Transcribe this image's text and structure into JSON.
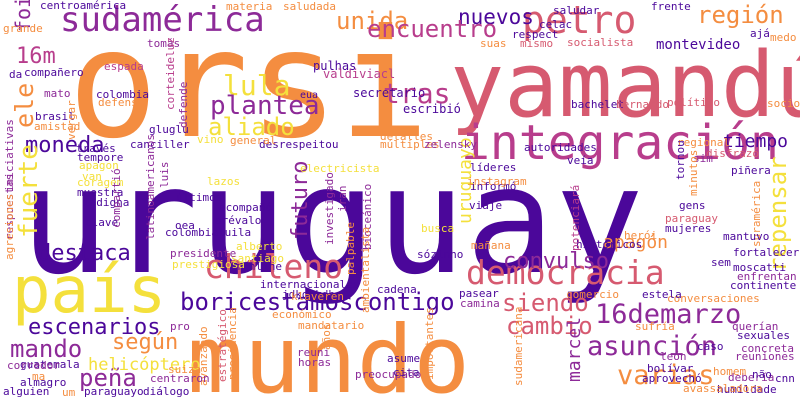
{
  "palette": {
    "indigo": "#4b079a",
    "purple": "#8d2a98",
    "magenta": "#b83d8c",
    "pink": "#d65a70",
    "orange": "#f48d40",
    "yellow": "#f4e03c",
    "background": "#ffffff"
  },
  "words": [
    {
      "text": "uruguay",
      "color": "indigo"
    },
    {
      "text": "orsi",
      "color": "orange"
    },
    {
      "text": "mundo",
      "color": "orange"
    },
    {
      "text": "yamandú",
      "color": "pink"
    },
    {
      "text": "país",
      "color": "yellow"
    },
    {
      "text": "integración",
      "color": "magenta"
    },
    {
      "text": "sudamérica",
      "color": "purple"
    },
    {
      "text": "petro",
      "color": "pink"
    },
    {
      "text": "democracia",
      "color": "pink"
    },
    {
      "text": "chileno",
      "color": "pink"
    },
    {
      "text": "boricestamoscontigo",
      "color": "indigo"
    },
    {
      "text": "16demarzo",
      "color": "purple"
    },
    {
      "text": "asunción",
      "color": "purple"
    },
    {
      "text": "cambio",
      "color": "pink"
    },
    {
      "text": "varias",
      "color": "orange"
    },
    {
      "text": "región",
      "color": "orange"
    },
    {
      "text": "unida",
      "color": "orange"
    },
    {
      "text": "nuevos",
      "color": "indigo"
    },
    {
      "text": "encuentro",
      "color": "magenta"
    },
    {
      "text": "16m",
      "color": "magenta"
    },
    {
      "text": "foi",
      "color": "purple"
    },
    {
      "text": "lula",
      "color": "yellow"
    },
    {
      "text": "tras",
      "color": "magenta"
    },
    {
      "text": "plantea",
      "color": "purple"
    },
    {
      "text": "aliado",
      "color": "yellow"
    },
    {
      "text": "moneda",
      "color": "indigo"
    },
    {
      "text": "fuerte",
      "color": "yellow"
    },
    {
      "text": "ele",
      "color": "orange"
    },
    {
      "text": "destaca",
      "color": "indigo"
    },
    {
      "text": "futuro",
      "color": "purple"
    },
    {
      "text": "uruguayo",
      "color": "yellow"
    },
    {
      "text": "convulso",
      "color": "purple"
    },
    {
      "text": "siendo",
      "color": "pink"
    },
    {
      "text": "repensar",
      "color": "yellow"
    },
    {
      "text": "escenarios",
      "color": "indigo"
    },
    {
      "text": "según",
      "color": "orange"
    },
    {
      "text": "mando",
      "color": "purple"
    },
    {
      "text": "peña",
      "color": "purple"
    },
    {
      "text": "helicóptero",
      "color": "yellow"
    },
    {
      "text": "apagón",
      "color": "orange"
    },
    {
      "text": "tiempo",
      "color": "indigo"
    },
    {
      "text": "marcel",
      "color": "purple"
    },
    {
      "text": "montevideo",
      "color": "indigo"
    },
    {
      "text": "centroamérica",
      "color": "indigo"
    },
    {
      "text": "materia",
      "color": "orange"
    },
    {
      "text": "saludada",
      "color": "orange"
    },
    {
      "text": "pulhas",
      "color": "indigo"
    },
    {
      "text": "valdiviacl",
      "color": "magenta"
    },
    {
      "text": "escribió",
      "color": "indigo"
    },
    {
      "text": "secretario",
      "color": "indigo"
    },
    {
      "text": "eua",
      "color": "indigo"
    },
    {
      "text": "tomás",
      "color": "purple"
    },
    {
      "text": "espada",
      "color": "magenta"
    },
    {
      "text": "colombia",
      "color": "indigo"
    },
    {
      "text": "corteideluz",
      "color": "magenta"
    },
    {
      "text": "detalles",
      "color": "orange"
    },
    {
      "text": "múltiples",
      "color": "orange"
    },
    {
      "text": "canciller",
      "color": "indigo"
    },
    {
      "text": "desrespeitou",
      "color": "indigo"
    },
    {
      "text": "zelensky",
      "color": "purple"
    },
    {
      "text": "autoridades",
      "color": "indigo"
    },
    {
      "text": "veía",
      "color": "indigo"
    },
    {
      "text": "líderes",
      "color": "indigo"
    },
    {
      "text": "informó",
      "color": "indigo"
    },
    {
      "text": "instagram",
      "color": "orange"
    },
    {
      "text": "viaje",
      "color": "indigo"
    },
    {
      "text": "mañana",
      "color": "orange"
    },
    {
      "text": "busca",
      "color": "yellow"
    },
    {
      "text": "herói",
      "color": "orange"
    },
    {
      "text": "históricos",
      "color": "indigo"
    },
    {
      "text": "potenciará",
      "color": "magenta"
    },
    {
      "text": "sózinho",
      "color": "indigo"
    },
    {
      "text": "cadena",
      "color": "indigo"
    },
    {
      "text": "pasear",
      "color": "indigo"
    },
    {
      "text": "camina",
      "color": "purple"
    },
    {
      "text": "internacionales",
      "color": "indigo"
    },
    {
      "text": "jdkdjkdb",
      "color": "indigo"
    },
    {
      "text": "bmonline",
      "color": "indigo"
    },
    {
      "text": "santiago",
      "color": "yellow"
    },
    {
      "text": "alberto",
      "color": "yellow"
    },
    {
      "text": "presidente",
      "color": "purple"
    },
    {
      "text": "prestigiosa",
      "color": "yellow"
    },
    {
      "text": "latinoamericanos",
      "color": "purple"
    },
    {
      "text": "colombialuila",
      "color": "indigo"
    },
    {
      "text": "arévalo",
      "color": "indigo"
    },
    {
      "text": "oea",
      "color": "indigo"
    },
    {
      "text": "últimos",
      "color": "indigo"
    },
    {
      "text": "acompañó",
      "color": "indigo"
    },
    {
      "text": "lazos",
      "color": "yellow"
    },
    {
      "text": "investigado",
      "color": "purple"
    },
    {
      "text": "iran",
      "color": "purple"
    },
    {
      "text": "palpable",
      "color": "orange"
    },
    {
      "text": "bioceánico",
      "color": "purple"
    },
    {
      "text": "klaveren",
      "color": "orange"
    },
    {
      "text": "económico",
      "color": "orange"
    },
    {
      "text": "mandatario",
      "color": "orange"
    },
    {
      "text": "reuni",
      "color": "purple"
    },
    {
      "text": "horas",
      "color": "purple"
    },
    {
      "text": "preocupado",
      "color": "purple"
    },
    {
      "text": "asume",
      "color": "indigo"
    },
    {
      "text": "cita",
      "color": "indigo"
    },
    {
      "text": "ambientalista",
      "color": "orange"
    },
    {
      "text": "importantes",
      "color": "orange"
    },
    {
      "text": "sudamericana",
      "color": "orange"
    },
    {
      "text": "avanzando",
      "color": "orange"
    },
    {
      "text": "estratégico",
      "color": "pink"
    },
    {
      "text": "presidencia",
      "color": "orange"
    },
    {
      "text": "años",
      "color": "orange"
    },
    {
      "text": "centraron",
      "color": "purple"
    },
    {
      "text": "diálogo",
      "color": "indigo"
    },
    {
      "text": "paraguayo",
      "color": "indigo"
    },
    {
      "text": "guatemala",
      "color": "indigo"
    },
    {
      "text": "almagro",
      "color": "indigo"
    },
    {
      "text": "alguien",
      "color": "indigo"
    },
    {
      "text": "corredor",
      "color": "purple"
    },
    {
      "text": "ma",
      "color": "orange"
    },
    {
      "text": "um",
      "color": "orange"
    },
    {
      "text": "gluglu",
      "color": "indigo"
    },
    {
      "text": "defende",
      "color": "purple"
    },
    {
      "text": "defensa",
      "color": "orange"
    },
    {
      "text": "amistad",
      "color": "orange"
    },
    {
      "text": "brasil",
      "color": "indigo"
    },
    {
      "text": "mato",
      "color": "purple"
    },
    {
      "text": "compañero",
      "color": "indigo"
    },
    {
      "text": "da",
      "color": "indigo"
    },
    {
      "text": "grande",
      "color": "orange"
    },
    {
      "text": "iniciativas",
      "color": "purple"
    },
    {
      "text": "respuestas",
      "color": "purple"
    },
    {
      "text": "agresiones",
      "color": "orange"
    },
    {
      "text": "vergar",
      "color": "orange"
    },
    {
      "text": "través",
      "color": "indigo"
    },
    {
      "text": "tempore",
      "color": "indigo"
    },
    {
      "text": "apagon",
      "color": "yellow"
    },
    {
      "text": "coragem",
      "color": "yellow"
    },
    {
      "text": "van",
      "color": "yellow"
    },
    {
      "text": "muestra",
      "color": "indigo"
    },
    {
      "text": "indigna",
      "color": "indigo"
    },
    {
      "text": "clave",
      "color": "indigo"
    },
    {
      "text": "luis",
      "color": "purple"
    },
    {
      "text": "compartió",
      "color": "purple"
    },
    {
      "text": "vino",
      "color": "yellow"
    },
    {
      "text": "general",
      "color": "orange"
    },
    {
      "text": "celac",
      "color": "indigo"
    },
    {
      "text": "saludar",
      "color": "indigo"
    },
    {
      "text": "frente",
      "color": "indigo"
    },
    {
      "text": "respect",
      "color": "indigo"
    },
    {
      "text": "mismo",
      "color": "pink"
    },
    {
      "text": "socialista",
      "color": "pink"
    },
    {
      "text": "suas",
      "color": "orange"
    },
    {
      "text": "ajá",
      "color": "indigo"
    },
    {
      "text": "medo",
      "color": "orange"
    },
    {
      "text": "bachelet",
      "color": "indigo"
    },
    {
      "text": "bernardo",
      "color": "pink"
    },
    {
      "text": "político",
      "color": "pink"
    },
    {
      "text": "socio",
      "color": "orange"
    },
    {
      "text": "regional",
      "color": "orange"
    },
    {
      "text": "disfrazó",
      "color": "pink"
    },
    {
      "text": "sim",
      "color": "purple"
    },
    {
      "text": "piñera",
      "color": "indigo"
    },
    {
      "text": "minutos",
      "color": "orange"
    },
    {
      "text": "suramérica",
      "color": "orange"
    },
    {
      "text": "gens",
      "color": "indigo"
    },
    {
      "text": "paraguay",
      "color": "pink"
    },
    {
      "text": "mujeres",
      "color": "indigo"
    },
    {
      "text": "tornou",
      "color": "indigo"
    },
    {
      "text": "mantuvo",
      "color": "indigo"
    },
    {
      "text": "fortalecer",
      "color": "indigo"
    },
    {
      "text": "moscatti",
      "color": "indigo"
    },
    {
      "text": "sem",
      "color": "indigo"
    },
    {
      "text": "enfrentan",
      "color": "purple"
    },
    {
      "text": "continente",
      "color": "indigo"
    },
    {
      "text": "conversaciones",
      "color": "orange"
    },
    {
      "text": "comercio",
      "color": "orange"
    },
    {
      "text": "estela",
      "color": "indigo"
    },
    {
      "text": "sufría",
      "color": "orange"
    },
    {
      "text": "querían",
      "color": "purple"
    },
    {
      "text": "sexuales",
      "color": "indigo"
    },
    {
      "text": "reuniones",
      "color": "purple"
    },
    {
      "text": "caso",
      "color": "indigo"
    },
    {
      "text": "concreta",
      "color": "purple"
    },
    {
      "text": "león",
      "color": "purple"
    },
    {
      "text": "debería",
      "color": "purple"
    },
    {
      "text": "bolívar",
      "color": "indigo"
    },
    {
      "text": "homem",
      "color": "orange"
    },
    {
      "text": "aprovechó",
      "color": "indigo"
    },
    {
      "text": "cnn",
      "color": "indigo"
    },
    {
      "text": "não",
      "color": "indigo"
    },
    {
      "text": "humildade",
      "color": "indigo"
    },
    {
      "text": "avassaladora",
      "color": "orange"
    },
    {
      "text": "pro",
      "color": "purple"
    },
    {
      "text": "electricista",
      "color": "yellow"
    },
    {
      "text": "suiza",
      "color": "orange"
    }
  ]
}
